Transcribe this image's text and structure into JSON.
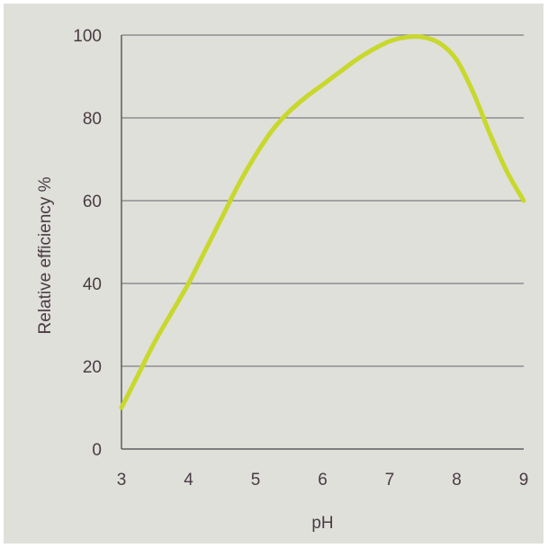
{
  "chart_data": {
    "type": "line",
    "title": "",
    "xlabel": "pH",
    "ylabel": "Relative efficiency %",
    "xlim": [
      3,
      9
    ],
    "ylim": [
      0,
      100
    ],
    "x_ticks": [
      "3",
      "4",
      "5",
      "6",
      "7",
      "8",
      "9"
    ],
    "y_ticks": [
      "0",
      "20",
      "40",
      "60",
      "80",
      "100"
    ],
    "grid": "horizontal",
    "legend": "none",
    "series": [
      {
        "x": [
          3.0,
          3.25,
          3.5,
          3.75,
          4.0,
          4.25,
          4.5,
          4.75,
          5.0,
          5.25,
          5.5,
          5.75,
          6.0,
          6.25,
          6.5,
          6.75,
          7.0,
          7.25,
          7.5,
          7.75,
          8.0,
          8.25,
          8.5,
          8.75,
          9.0
        ],
        "y": [
          10,
          18,
          26,
          33,
          40,
          48,
          56,
          64,
          71,
          77,
          81.5,
          85,
          88,
          91,
          94,
          96.5,
          98.5,
          99.5,
          99.5,
          98,
          94,
          86,
          76,
          67,
          60
        ]
      }
    ],
    "colors": {
      "background": "#dfe0da",
      "line": "#c8d82c",
      "grid": "#7d7d82",
      "axis": "#5d5d60",
      "text": "#4a3b44"
    }
  }
}
